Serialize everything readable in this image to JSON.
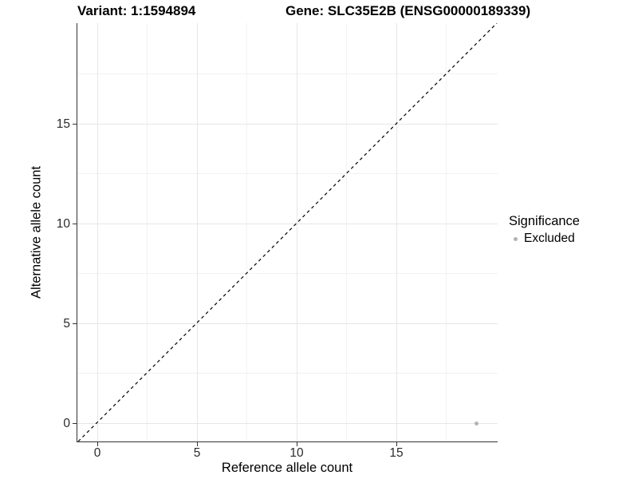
{
  "header": {
    "variant_label": "Variant: 1:1594894",
    "gene_label": "Gene: SLC35E2B (ENSG00000189339)"
  },
  "chart_data": {
    "type": "scatter",
    "title": "Variant: 1:1594894   Gene: SLC35E2B (ENSG00000189339)",
    "xlabel": "Reference allele count",
    "ylabel": "Alternative allele count",
    "xlim": [
      -1,
      20.1
    ],
    "ylim": [
      -1,
      20.1
    ],
    "x_ticks": [
      0,
      5,
      10,
      15
    ],
    "y_ticks": [
      0,
      5,
      10,
      15
    ],
    "x_minor_ticks": [
      2.5,
      7.5,
      12.5,
      17.5
    ],
    "y_minor_ticks": [
      2.5,
      7.5,
      12.5,
      17.5
    ],
    "grid": true,
    "legend": {
      "title": "Significance",
      "position": "right",
      "entries": [
        {
          "label": "Excluded",
          "color": "#b3b3b3"
        }
      ]
    },
    "series": [
      {
        "name": "Excluded",
        "color": "#b3b3b3",
        "points": [
          {
            "x": 19,
            "y": 0
          }
        ]
      }
    ],
    "reference_line": {
      "equation": "y = x",
      "style": "dashed",
      "color": "#000000"
    }
  },
  "colors": {
    "background": "#ffffff",
    "axis_line": "#333333",
    "grid_major": "#e6e6e6",
    "grid_minor": "#f2f2f2",
    "point": "#b3b3b3",
    "dashed_line": "#000000",
    "text": "#000000"
  }
}
